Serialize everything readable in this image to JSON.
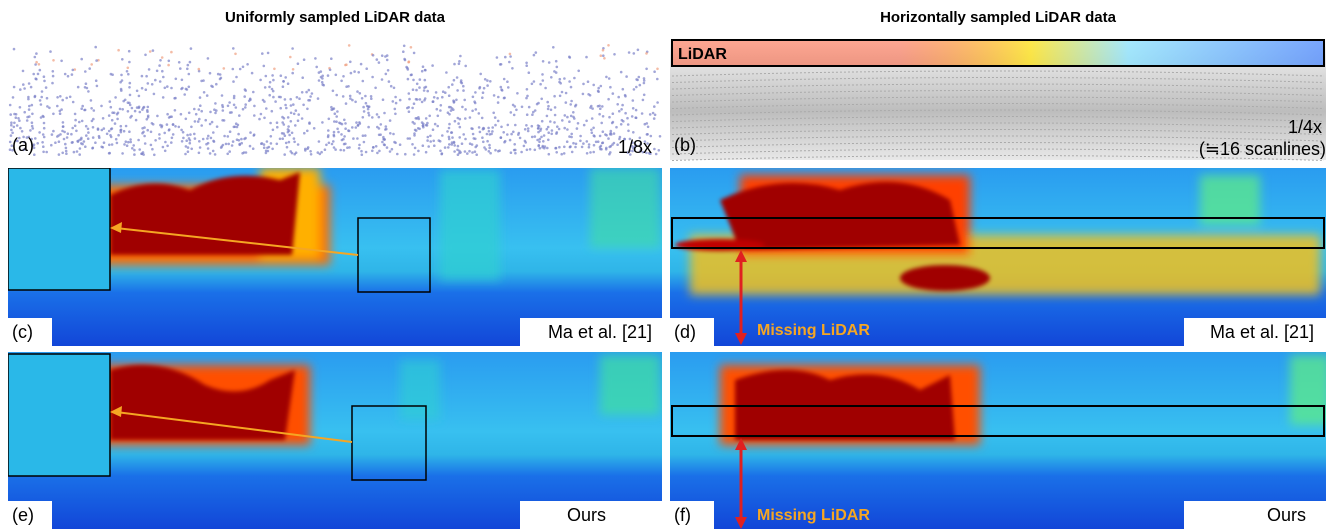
{
  "columns": [
    {
      "title": "Uniformly sampled LiDAR data"
    },
    {
      "title": "Horizontally sampled LiDAR data"
    }
  ],
  "panels": [
    {
      "label": "(a)",
      "note": "1/8x"
    },
    {
      "label": "(b)",
      "note": "1/4x",
      "note2": "(≒16 scanlines)",
      "tag": "LiDAR"
    },
    {
      "label": "(c)",
      "method": "Ma et al. [21]"
    },
    {
      "label": "(d)",
      "method": "Ma et al. [21]",
      "annotation": "Missing LiDAR"
    },
    {
      "label": "(e)",
      "method": "Ours"
    },
    {
      "label": "(f)",
      "method": "Ours",
      "annotation": "Missing LiDAR"
    }
  ]
}
